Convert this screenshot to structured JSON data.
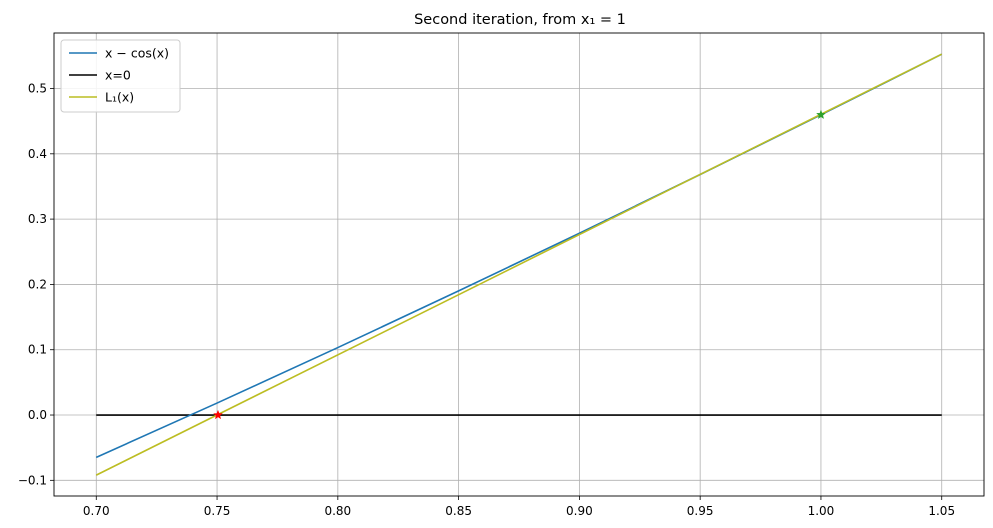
{
  "chart_data": {
    "type": "line",
    "title": "Second iteration, from x₁ = 1",
    "xlabel": "",
    "ylabel": "",
    "xlim": [
      0.6825,
      1.0675
    ],
    "ylim": [
      -0.124,
      0.585
    ],
    "grid": true,
    "legend_position": "top-left",
    "x_ticks": [
      "0.70",
      "0.75",
      "0.80",
      "0.85",
      "0.90",
      "0.95",
      "1.00",
      "1.05"
    ],
    "y_ticks": [
      "−0.1",
      "0.0",
      "0.1",
      "0.2",
      "0.3",
      "0.4",
      "0.5"
    ],
    "series": [
      {
        "name": "x − cos(x)",
        "color": "#1f77b4",
        "x": [
          0.7,
          0.75,
          0.8,
          0.85,
          0.9,
          0.95,
          1.0,
          1.05
        ],
        "y": [
          -0.0648,
          0.0183,
          0.1033,
          0.1901,
          0.2784,
          0.3683,
          0.4597,
          0.5525
        ]
      },
      {
        "name": "x=0",
        "color": "#000000",
        "x": [
          0.7,
          1.05
        ],
        "y": [
          0.0,
          0.0
        ]
      },
      {
        "name": "L₁(x)",
        "color": "#bcbd22",
        "x": [
          0.7,
          1.05
        ],
        "y": [
          -0.092,
          0.5526
        ]
      }
    ],
    "markers": [
      {
        "x": 1.0,
        "y": 0.4597,
        "color": "#2ca02c",
        "shape": "star"
      },
      {
        "x": 0.7504,
        "y": 0.0,
        "color": "#ff0000",
        "shape": "star"
      }
    ]
  }
}
